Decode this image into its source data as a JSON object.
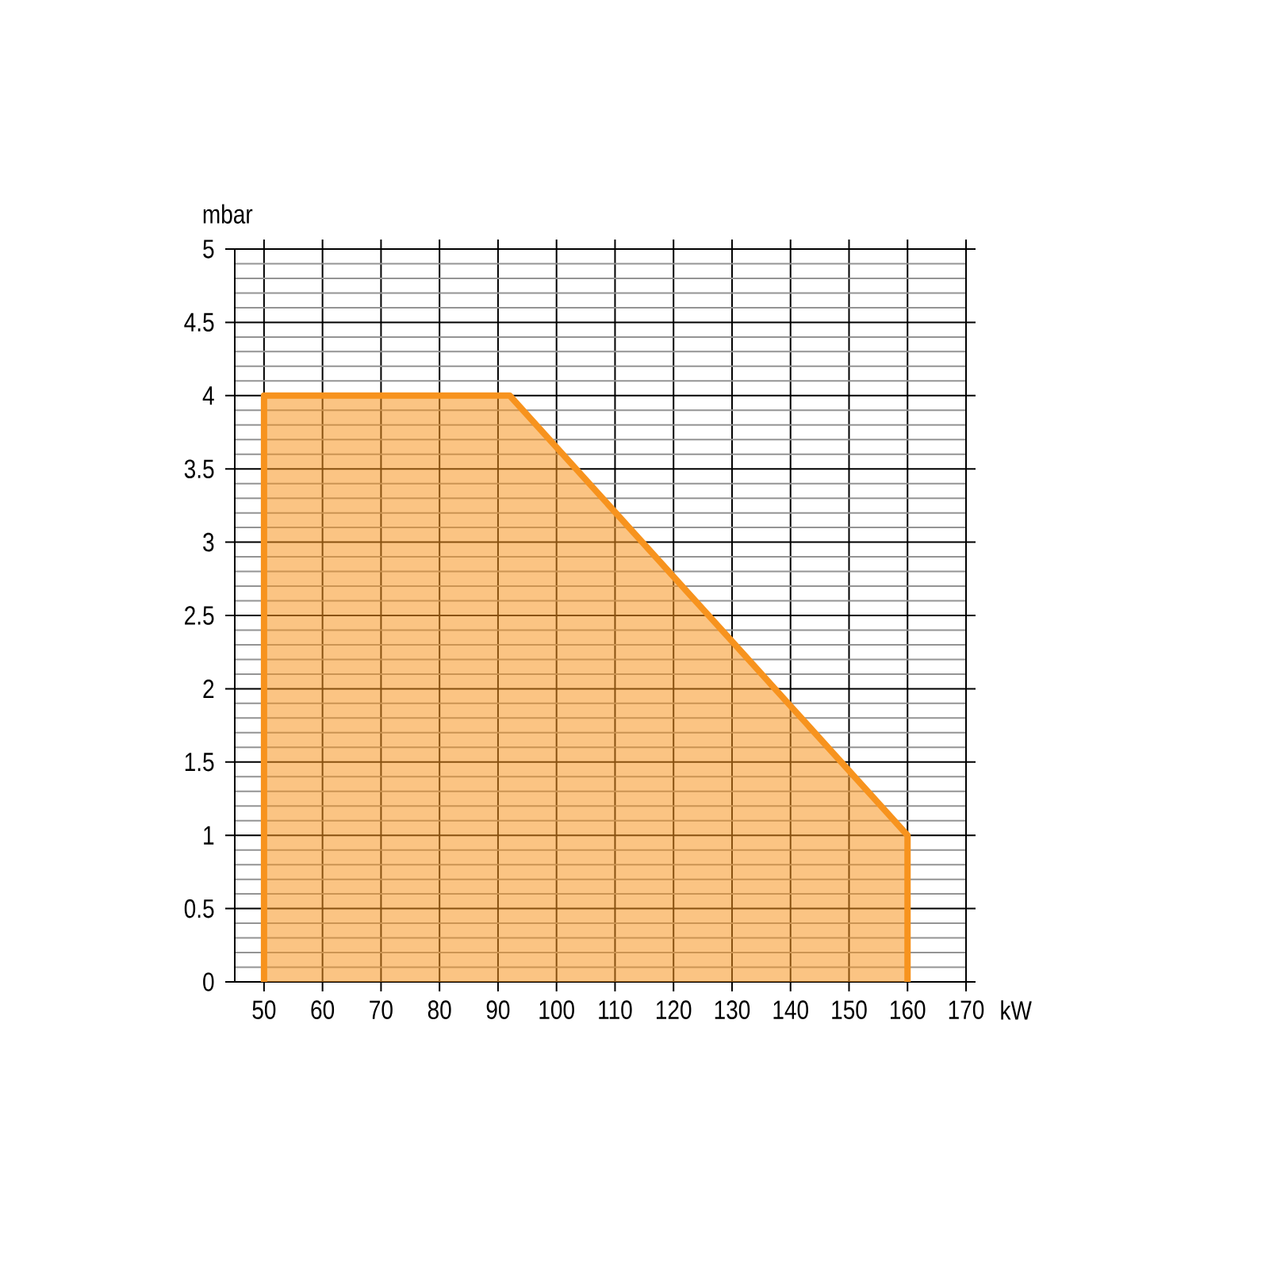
{
  "chart_data": {
    "type": "area",
    "xlabel": "kW",
    "ylabel": "mbar",
    "x": [
      50,
      50,
      92,
      160,
      160
    ],
    "values": [
      0,
      4,
      4,
      1,
      0
    ],
    "color": "#f7931e",
    "xlim": [
      45,
      170
    ],
    "ylim": [
      0,
      5
    ],
    "xticks": [
      50,
      60,
      70,
      80,
      90,
      100,
      110,
      120,
      130,
      140,
      150,
      160,
      170
    ],
    "yticks": [
      0,
      {
        "value": 0.1,
        "label": null
      },
      {
        "value": 0.2,
        "label": null
      },
      {
        "value": 0.3,
        "label": null
      },
      {
        "value": 0.4,
        "label": null
      },
      0.5,
      {
        "value": 0.6,
        "label": null
      },
      {
        "value": 0.7,
        "label": null
      },
      {
        "value": 0.8,
        "label": null
      },
      {
        "value": 0.9,
        "label": null
      },
      1,
      {
        "value": 1.1,
        "label": null
      },
      {
        "value": 1.2,
        "label": null
      },
      {
        "value": 1.3,
        "label": null
      },
      {
        "value": 1.4,
        "label": null
      },
      1.5,
      {
        "value": 1.6,
        "label": null
      },
      {
        "value": 1.7,
        "label": null
      },
      {
        "value": 1.8,
        "label": null
      },
      {
        "value": 1.9,
        "label": null
      },
      2,
      {
        "value": 2.1,
        "label": null
      },
      {
        "value": 2.2,
        "label": null
      },
      {
        "value": 2.3,
        "label": null
      },
      {
        "value": 2.4,
        "label": null
      },
      2.5,
      {
        "value": 2.6,
        "label": null
      },
      {
        "value": 2.7,
        "label": null
      },
      {
        "value": 2.8,
        "label": null
      },
      {
        "value": 2.9,
        "label": null
      },
      3,
      {
        "value": 3.1,
        "label": null
      },
      {
        "value": 3.2,
        "label": null
      },
      {
        "value": 3.3,
        "label": null
      },
      {
        "value": 3.4,
        "label": null
      },
      3.5,
      {
        "value": 3.6,
        "label": null
      },
      {
        "value": 3.7,
        "label": null
      },
      {
        "value": 3.8,
        "label": null
      },
      {
        "value": 3.9,
        "label": null
      },
      4,
      {
        "value": 4.1,
        "label": null
      },
      {
        "value": 4.2,
        "label": null
      },
      {
        "value": 4.3,
        "label": null
      },
      {
        "value": 4.4,
        "label": null
      },
      4.5,
      {
        "value": 4.6,
        "label": null
      },
      {
        "value": 4.7,
        "label": null
      },
      {
        "value": 4.8,
        "label": null
      },
      {
        "value": 4.9,
        "label": null
      },
      5
    ],
    "grid": true
  }
}
